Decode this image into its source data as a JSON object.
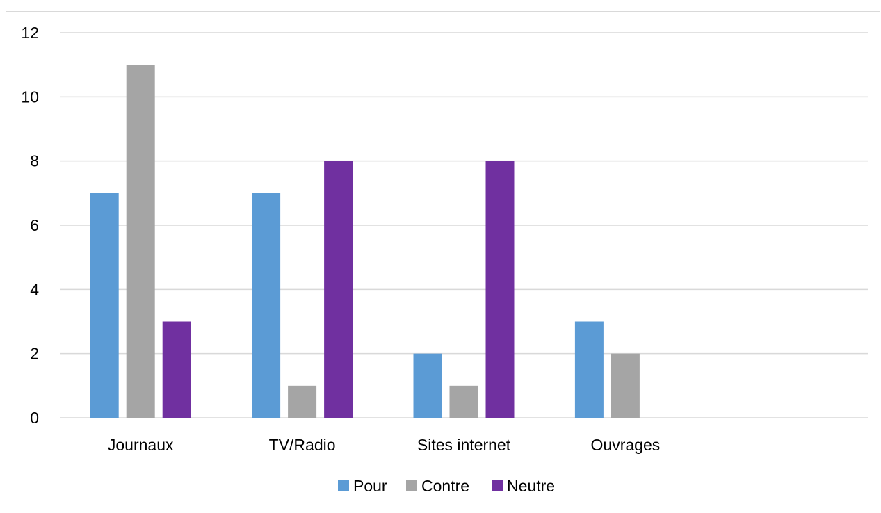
{
  "chart_data": {
    "type": "bar",
    "title": "",
    "xlabel": "",
    "ylabel": "",
    "categories": [
      "Journaux",
      "TV/Radio",
      "Sites internet",
      "Ouvrages",
      ""
    ],
    "series": [
      {
        "name": "Pour",
        "color": "#5b9bd5",
        "values": [
          7,
          7,
          2,
          3,
          null
        ]
      },
      {
        "name": "Contre",
        "color": "#a5a5a5",
        "values": [
          11,
          1,
          1,
          2,
          null
        ]
      },
      {
        "name": "Neutre",
        "color": "#7030a0",
        "values": [
          3,
          8,
          8,
          null,
          null
        ]
      }
    ],
    "ylim": [
      0,
      12
    ],
    "yticks": [
      "0",
      "2",
      "4",
      "6",
      "8",
      "10",
      "12"
    ],
    "grid": true,
    "legend_position": "bottom",
    "data_labels": false
  }
}
